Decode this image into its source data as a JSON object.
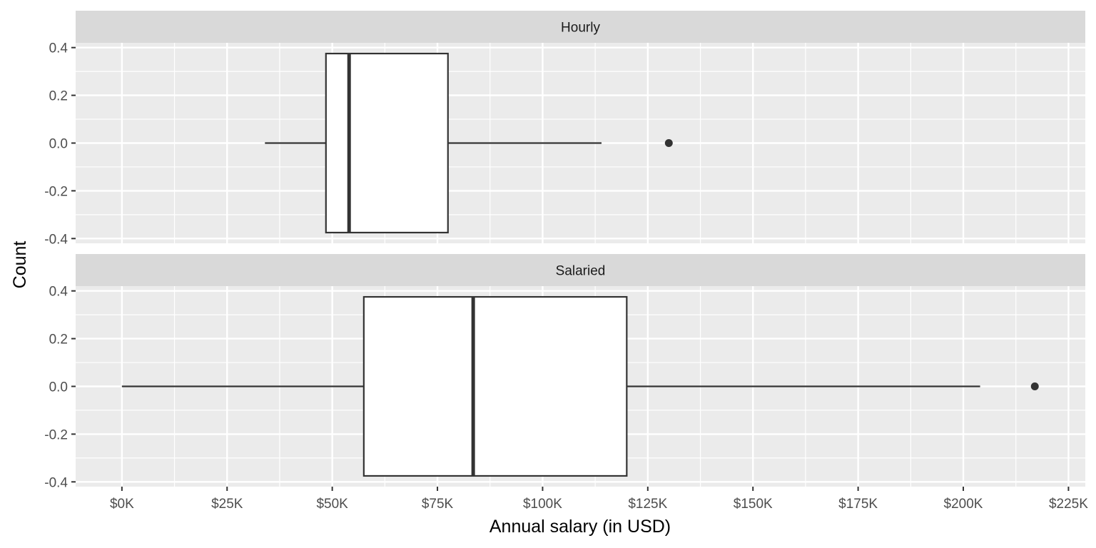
{
  "chart_data": {
    "type": "boxplot",
    "orientation": "horizontal",
    "xlabel": "Annual salary (in USD)",
    "ylabel": "Count",
    "xlim": [
      -11000,
      229000
    ],
    "ylim": [
      -0.42,
      0.42
    ],
    "x_ticks": [
      0,
      25000,
      50000,
      75000,
      100000,
      125000,
      150000,
      175000,
      200000,
      225000
    ],
    "x_tick_labels": [
      "$0K",
      "$25K",
      "$50K",
      "$75K",
      "$100K",
      "$125K",
      "$150K",
      "$175K",
      "$200K",
      "$225K"
    ],
    "y_ticks": [
      0.4,
      0.2,
      0.0,
      -0.2,
      -0.4
    ],
    "y_tick_labels": [
      "0.4",
      "0.2",
      "0.0",
      "-0.2",
      "-0.4"
    ],
    "grid": true,
    "box_half_height": 0.375,
    "facets": [
      {
        "label": "Hourly",
        "whisker_low": 34000,
        "q1": 48500,
        "median": 54000,
        "q3": 77500,
        "whisker_high": 114000,
        "outliers": [
          130000
        ]
      },
      {
        "label": "Salaried",
        "whisker_low": 0,
        "q1": 57500,
        "median": 83500,
        "q3": 120000,
        "whisker_high": 204000,
        "outliers": [
          217000
        ]
      }
    ]
  }
}
